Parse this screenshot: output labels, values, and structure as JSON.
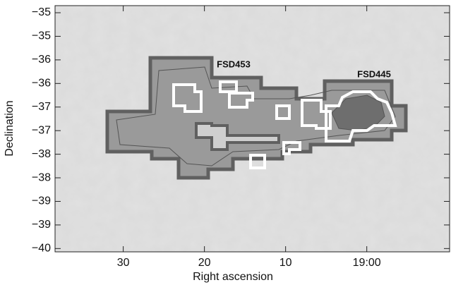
{
  "chart_data": {
    "type": "image",
    "x_label": "Right ascension",
    "y_label": "Declination",
    "xlim": [
      38.4,
      -10.2
    ],
    "ylim": [
      -40.07,
      -34.85
    ],
    "xticks": [
      30,
      20,
      10,
      {
        "value": 0,
        "label": "19:00"
      }
    ],
    "yticks": [
      {
        "value": -35.0,
        "label": "−35"
      },
      {
        "value": -35.5,
        "label": "−35"
      },
      {
        "value": -36.0,
        "label": "−36"
      },
      {
        "value": -36.5,
        "label": "−36"
      },
      {
        "value": -37.0,
        "label": "−37"
      },
      {
        "value": -37.5,
        "label": "−37"
      },
      {
        "value": -38.0,
        "label": "−38"
      },
      {
        "value": -38.5,
        "label": "−38"
      },
      {
        "value": -39.0,
        "label": "−39"
      },
      {
        "value": -39.5,
        "label": "−39"
      },
      {
        "value": -40.0,
        "label": "−40"
      }
    ],
    "annotations": [
      "FSD453",
      "FSD445"
    ]
  }
}
